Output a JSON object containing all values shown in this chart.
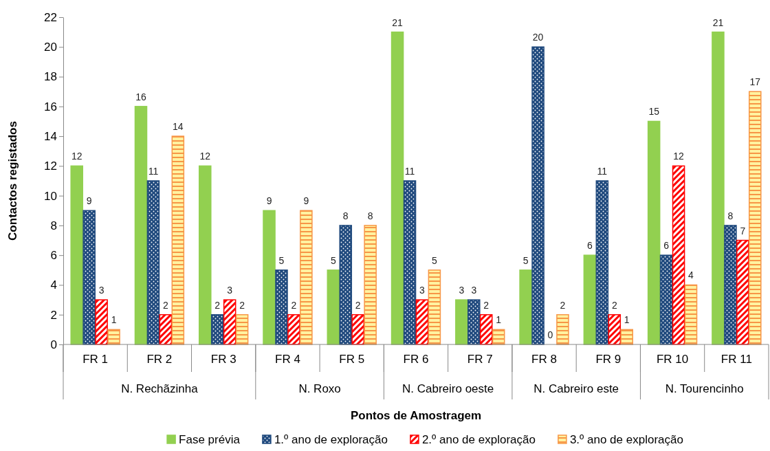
{
  "chart_data": {
    "type": "bar",
    "xlabel": "Pontos de Amostragem",
    "ylabel": "Contactos registados",
    "categories": [
      "FR 1",
      "FR 2",
      "FR 3",
      "FR 4",
      "FR 5",
      "FR 6",
      "FR 7",
      "FR 8",
      "FR 9",
      "FR 10",
      "FR 11"
    ],
    "series": [
      {
        "name": "Fase prévia",
        "color": "#92d050",
        "values": [
          12,
          16,
          12,
          9,
          5,
          21,
          3,
          5,
          6,
          15,
          21
        ]
      },
      {
        "name": "1.º ano de exploração",
        "color": "#1f497d",
        "values": [
          9,
          11,
          2,
          5,
          8,
          11,
          3,
          20,
          11,
          6,
          8
        ]
      },
      {
        "name": "2.º ano de exploração",
        "color": "#ff0000",
        "values": [
          3,
          2,
          3,
          2,
          2,
          3,
          2,
          0,
          2,
          12,
          7
        ]
      },
      {
        "name": "3.º ano de exploração",
        "color": "#f79646",
        "values": [
          1,
          14,
          2,
          9,
          8,
          5,
          1,
          2,
          1,
          4,
          17
        ]
      }
    ],
    "annotations": [
      "N. Rechãzinha",
      "N. Roxo",
      "N. Cabreiro oeste",
      "N. Cabreiro este",
      "N. Tourencinho"
    ],
    "ylim": [
      0,
      22
    ],
    "yticks": [
      0,
      2,
      4,
      6,
      8,
      10,
      12,
      14,
      16,
      18,
      20,
      22
    ],
    "grid": false,
    "legend": "bottom",
    "data_labels": true
  }
}
